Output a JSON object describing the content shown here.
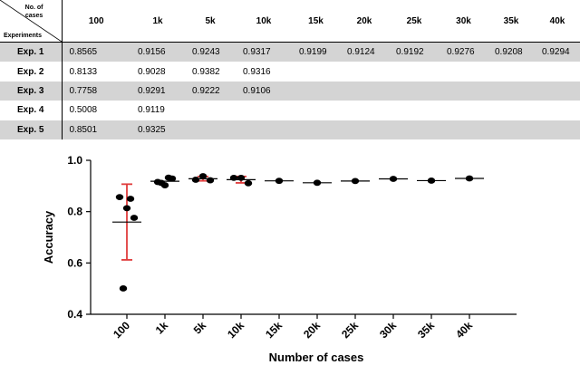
{
  "table": {
    "corner_top_line1": "No. of",
    "corner_top_line2": "cases",
    "corner_bottom": "Experiments",
    "columns": [
      "100",
      "1k",
      "5k",
      "10k",
      "15k",
      "20k",
      "25k",
      "30k",
      "35k",
      "40k"
    ],
    "rows": [
      {
        "label": "Exp. 1",
        "values": [
          "0.8565",
          "0.9156",
          "0.9243",
          "0.9317",
          "0.9199",
          "0.9124",
          "0.9192",
          "0.9276",
          "0.9208",
          "0.9294"
        ]
      },
      {
        "label": "Exp. 2",
        "values": [
          "0.8133",
          "0.9028",
          "0.9382",
          "0.9316",
          "",
          "",
          "",
          "",
          "",
          ""
        ]
      },
      {
        "label": "Exp. 3",
        "values": [
          "0.7758",
          "0.9291",
          "0.9222",
          "0.9106",
          "",
          "",
          "",
          "",
          "",
          ""
        ]
      },
      {
        "label": "Exp. 4",
        "values": [
          "0.5008",
          "0.9119",
          "",
          "",
          "",
          "",
          "",
          "",
          "",
          ""
        ]
      },
      {
        "label": "Exp. 5",
        "values": [
          "0.8501",
          "0.9325",
          "",
          "",
          "",
          "",
          "",
          "",
          "",
          ""
        ]
      }
    ]
  },
  "chart_data": {
    "type": "scatter",
    "title": "",
    "xlabel": "Number of cases",
    "ylabel": "Accuracy",
    "categories": [
      "100",
      "1k",
      "5k",
      "10k",
      "15k",
      "20k",
      "25k",
      "30k",
      "35k",
      "40k"
    ],
    "ylim": [
      0.4,
      1.0
    ],
    "yticks": [
      "0.4",
      "0.6",
      "0.8",
      "1.0"
    ],
    "grid": false,
    "points": [
      [
        0.8565,
        0.8133,
        0.7758,
        0.5008,
        0.8501
      ],
      [
        0.9156,
        0.9028,
        0.9291,
        0.9119,
        0.9325
      ],
      [
        0.9243,
        0.9382,
        0.9222
      ],
      [
        0.9317,
        0.9316,
        0.9106
      ],
      [
        0.9199
      ],
      [
        0.9124
      ],
      [
        0.9192
      ],
      [
        0.9276
      ],
      [
        0.9208
      ],
      [
        0.9294
      ]
    ],
    "means": [
      0.7593,
      0.9184,
      0.9282,
      0.9246,
      0.9199,
      0.9124,
      0.9192,
      0.9276,
      0.9208,
      0.9294
    ],
    "error_bars": [
      {
        "category": "100",
        "low": 0.612,
        "high": 0.907
      },
      {
        "category": "5k",
        "low": 0.92,
        "high": 0.937
      },
      {
        "category": "10k",
        "low": 0.912,
        "high": 0.937
      }
    ],
    "colors": {
      "points": "#000000",
      "mean": "#000000",
      "error": "#e03c3c"
    }
  }
}
